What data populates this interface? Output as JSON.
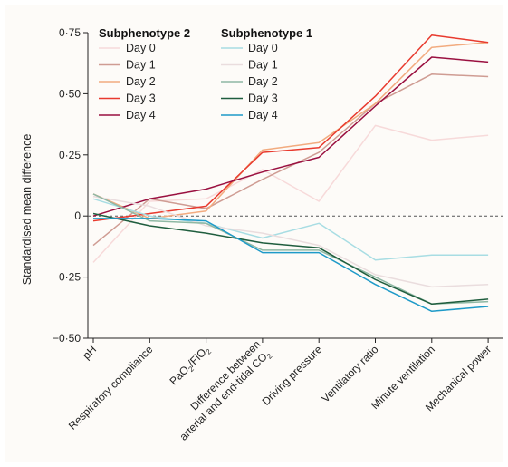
{
  "chart_data": {
    "type": "line",
    "ylabel": "Standardised mean difference",
    "ylim": [
      -0.5,
      0.75
    ],
    "yticks": [
      -0.5,
      -0.25,
      0,
      0.25,
      0.5,
      0.75
    ],
    "ytick_labels": [
      "−0·50",
      "−0·25",
      "0",
      "0·25",
      "0·50",
      "0·75"
    ],
    "zero_line": "dashed",
    "legend_position": "top-left",
    "categories": [
      {
        "label": "pH"
      },
      {
        "label": "Respiratory compliance"
      },
      {
        "label": "PaO",
        "sub": "2",
        "label2": "/FiO",
        "sub2": "2"
      },
      {
        "line1": "Difference between",
        "line2": "arterial and end-tidal CO",
        "sub": "2"
      },
      {
        "label": "Driving pressure"
      },
      {
        "label": "Ventilatory ratio"
      },
      {
        "label": "Minute ventilation"
      },
      {
        "label": "Mechanical power"
      }
    ],
    "groups": [
      {
        "name": "Subphenotype 2",
        "series": [
          {
            "name": "Day 0",
            "color": "#f7dada",
            "values": [
              -0.19,
              0.06,
              0.07,
              0.19,
              0.06,
              0.37,
              0.31,
              0.33
            ]
          },
          {
            "name": "Day 1",
            "color": "#cf9c93",
            "values": [
              -0.12,
              0.07,
              0.03,
              0.15,
              0.26,
              0.46,
              0.58,
              0.57
            ]
          },
          {
            "name": "Day 2",
            "color": "#f2ab7f",
            "values": [
              0.09,
              -0.01,
              0.02,
              0.27,
              0.3,
              0.46,
              0.69,
              0.71
            ]
          },
          {
            "name": "Day 3",
            "color": "#e83a2e",
            "values": [
              -0.02,
              0.01,
              0.04,
              0.26,
              0.28,
              0.49,
              0.74,
              0.71
            ]
          },
          {
            "name": "Day 4",
            "color": "#9a1040",
            "values": [
              0.0,
              0.07,
              0.11,
              0.18,
              0.24,
              0.45,
              0.65,
              0.63
            ]
          }
        ]
      },
      {
        "name": "Subphenotype 1",
        "series": [
          {
            "name": "Day 0",
            "color": "#a8dde3",
            "values": [
              0.07,
              0.0,
              -0.03,
              -0.09,
              -0.03,
              -0.18,
              -0.16,
              -0.16
            ]
          },
          {
            "name": "Day 1",
            "color": "#eaddde",
            "values": [
              0.08,
              0.04,
              -0.04,
              -0.07,
              -0.12,
              -0.24,
              -0.29,
              -0.28
            ]
          },
          {
            "name": "Day 2",
            "color": "#8fb8a4",
            "values": [
              0.09,
              -0.02,
              -0.03,
              -0.14,
              -0.14,
              -0.25,
              -0.36,
              -0.35
            ]
          },
          {
            "name": "Day 3",
            "color": "#1f5d3e",
            "values": [
              0.01,
              -0.04,
              -0.07,
              -0.11,
              -0.13,
              -0.26,
              -0.36,
              -0.34
            ]
          },
          {
            "name": "Day 4",
            "color": "#1e9ac8",
            "values": [
              -0.01,
              -0.01,
              -0.02,
              -0.15,
              -0.15,
              -0.28,
              -0.39,
              -0.37
            ]
          }
        ]
      }
    ]
  }
}
